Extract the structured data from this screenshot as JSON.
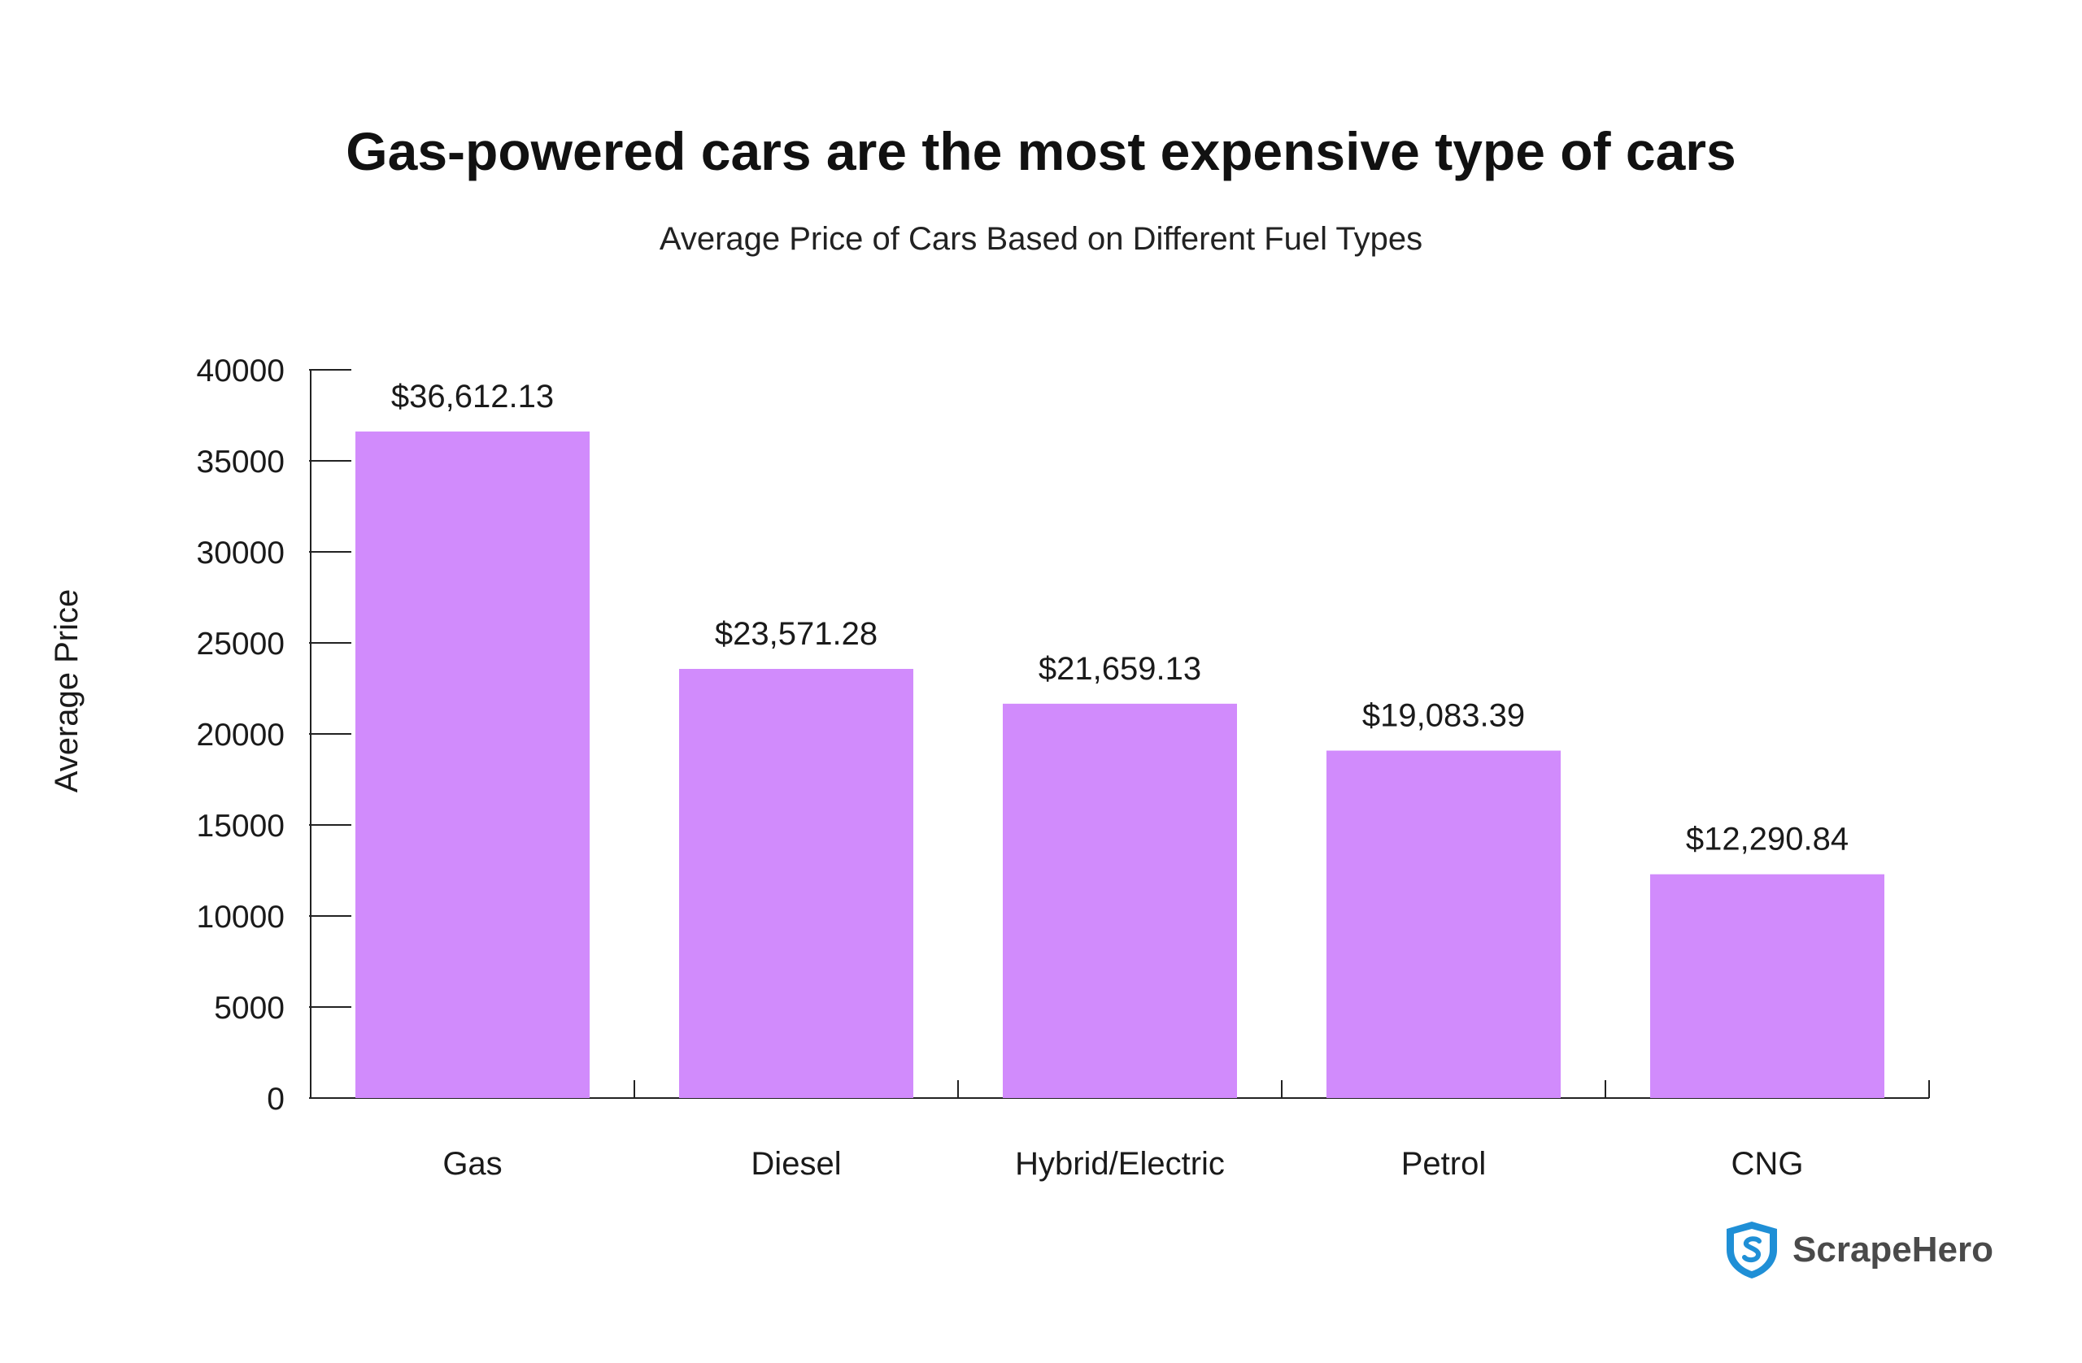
{
  "chart_data": {
    "type": "bar",
    "title": "Gas-powered cars are the most expensive type of cars",
    "subtitle": "Average Price of Cars Based on Different Fuel Types",
    "xlabel": "",
    "ylabel": "Average Price",
    "categories": [
      "Gas",
      "Diesel",
      "Hybrid/Electric",
      "Petrol",
      "CNG"
    ],
    "values": [
      36612.13,
      23571.28,
      21659.13,
      19083.39,
      12290.84
    ],
    "data_labels": [
      "$36,612.13",
      "$23,571.28",
      "$21,659.13",
      "$19,083.39",
      "$12,290.84"
    ],
    "ylim": [
      0,
      40000
    ],
    "yticks": [
      0,
      5000,
      10000,
      15000,
      20000,
      25000,
      30000,
      35000,
      40000
    ],
    "grid": false,
    "bar_color": "#d18bfc"
  },
  "brand": {
    "name": "ScrapeHero",
    "icon": "shield-icon",
    "color": "#1f8fd6"
  }
}
